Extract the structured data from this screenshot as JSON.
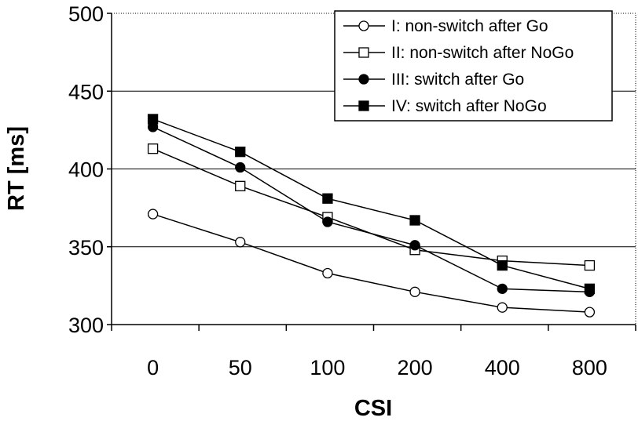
{
  "chart_data": {
    "type": "line",
    "title": "",
    "xlabel": "CSI",
    "ylabel": "RT [ms]",
    "categories": [
      "0",
      "50",
      "100",
      "200",
      "400",
      "800"
    ],
    "ylim": [
      300,
      500
    ],
    "yticks": [
      "300",
      "350",
      "400",
      "450",
      "500"
    ],
    "grid": "horizontal",
    "legend_position": "top-right",
    "series": [
      {
        "name": "I: non-switch after Go",
        "marker": "circle-open",
        "values": [
          371,
          353,
          333,
          321,
          311,
          308
        ]
      },
      {
        "name": "II: non-switch after NoGo",
        "marker": "square-open",
        "values": [
          413,
          389,
          369,
          348,
          341,
          338
        ]
      },
      {
        "name": "III: switch after Go",
        "marker": "circle-filled",
        "values": [
          427,
          401,
          366,
          351,
          323,
          321
        ]
      },
      {
        "name": "IV: switch after NoGo",
        "marker": "square-filled",
        "values": [
          432,
          411,
          381,
          367,
          338,
          323
        ]
      }
    ]
  }
}
